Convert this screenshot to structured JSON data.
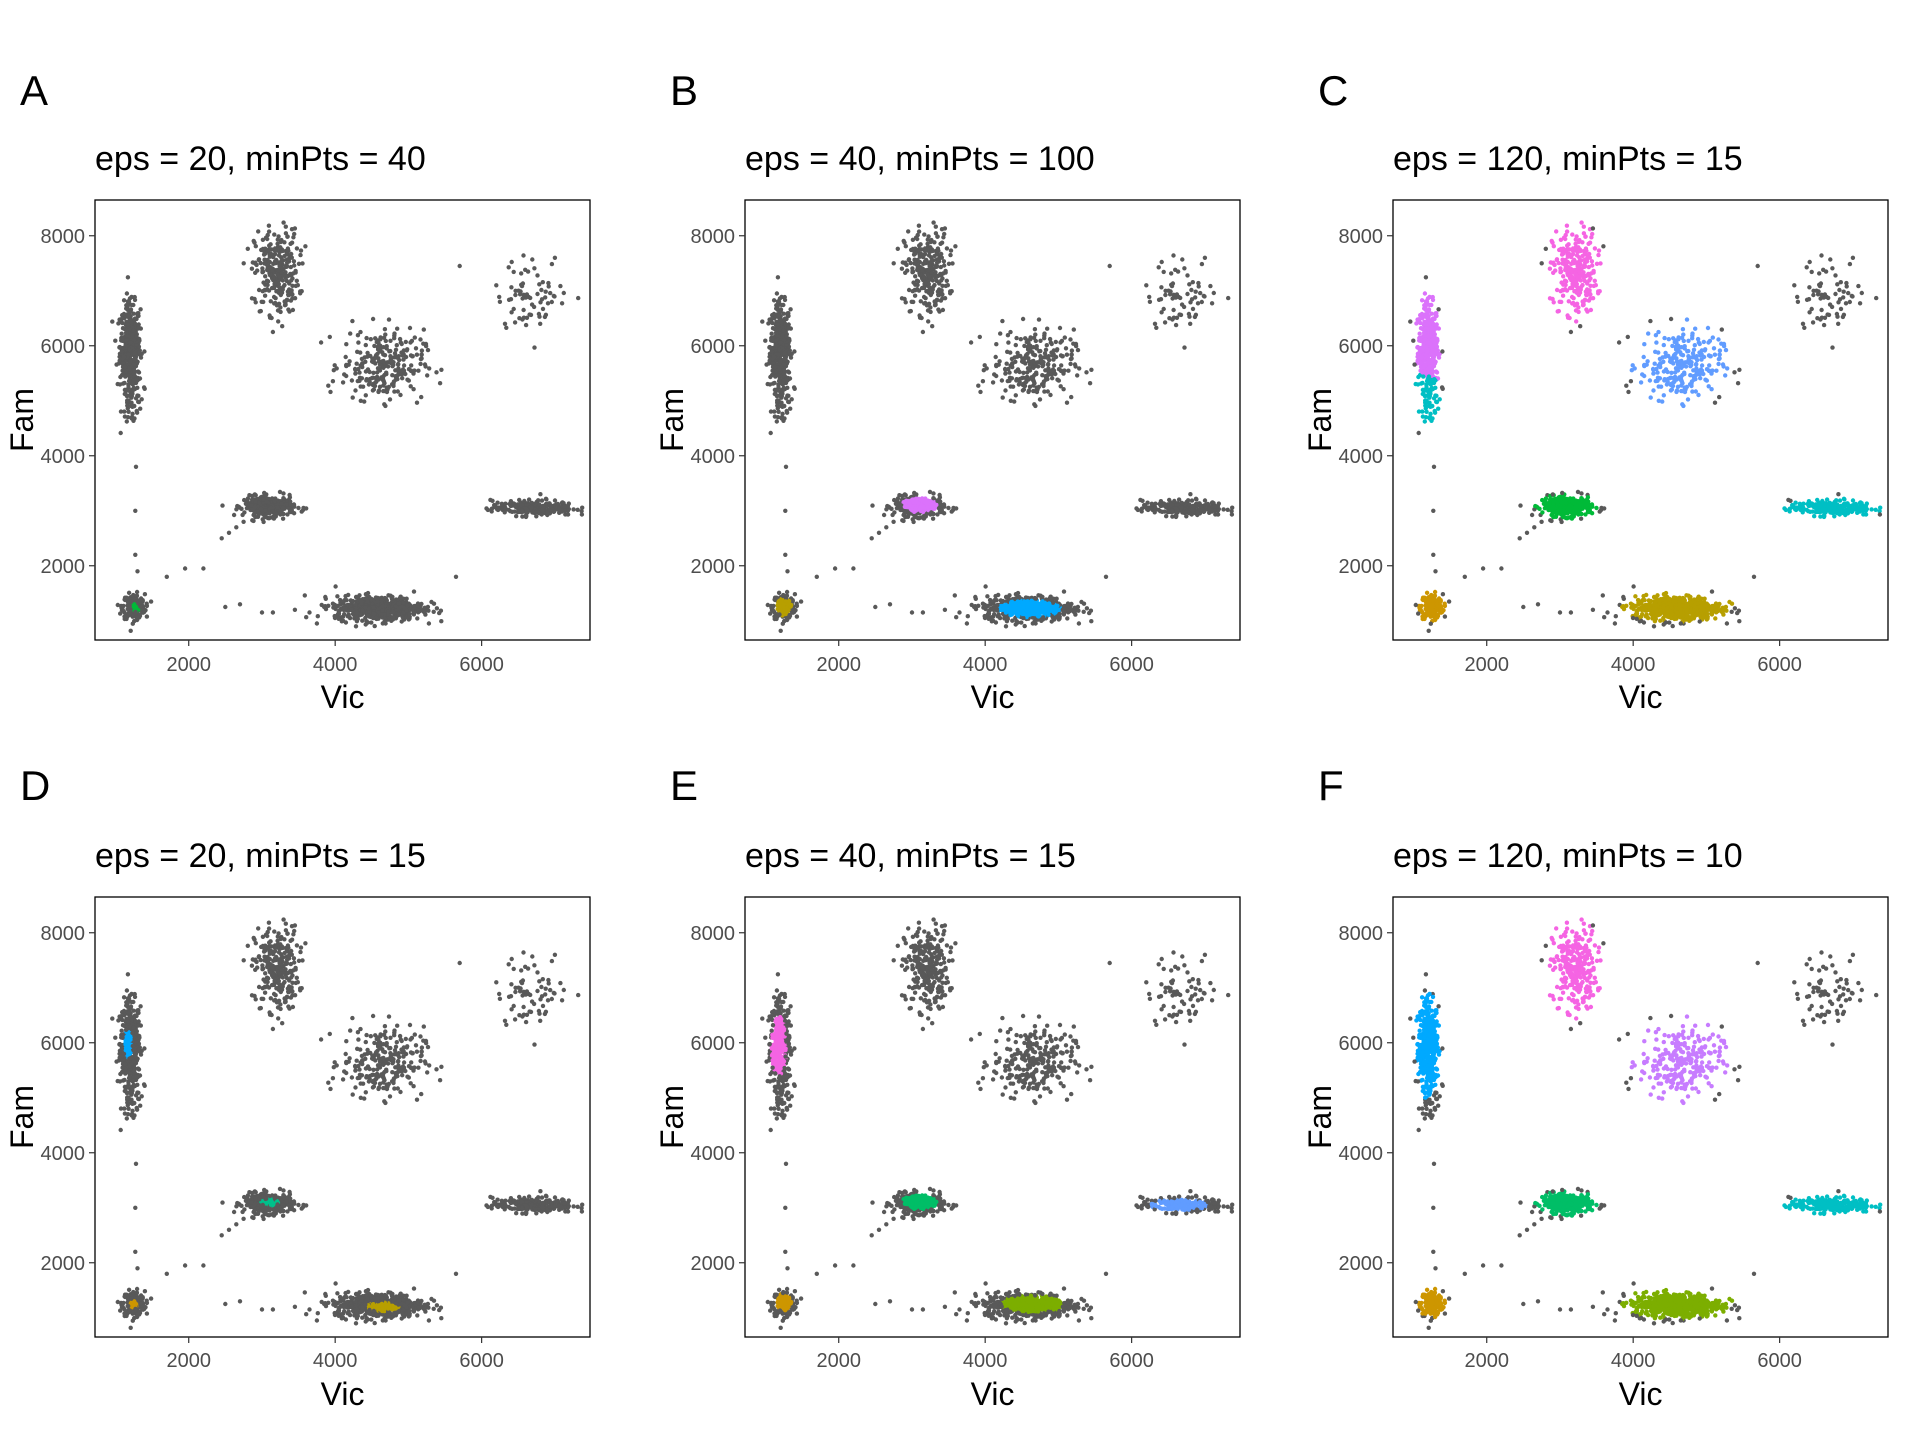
{
  "axis_defaults": {
    "xlabel": "Vic",
    "ylabel": "Fam",
    "xlim": [
      720,
      7480
    ],
    "ylim": [
      650,
      8650
    ],
    "xticks": [
      "2000",
      "4000",
      "6000"
    ],
    "yticks": [
      "2000",
      "4000",
      "6000",
      "8000"
    ]
  },
  "colors": {
    "noise": "#595959",
    "green": "#00ba38",
    "violet": "#db72fb",
    "cyan_blue": "#00a9ff",
    "olive": "#b79f00",
    "magenta": "#f564e3",
    "cornflower": "#619cff",
    "deep_cyan": "#00bfc4",
    "sea_green": "#00c08b",
    "cluster_green": "#00be67",
    "orange": "#cd9600",
    "lime": "#7cae00",
    "sky": "#00b4f0",
    "lavender": "#c77cff"
  },
  "chart_data": [
    {
      "type": "scatter",
      "panel_label": "A",
      "title": "eps = 20, minPts = 40",
      "xlabel": "Vic",
      "ylabel": "Fam",
      "xlim": [
        720,
        7480
      ],
      "ylim": [
        650,
        8650
      ],
      "grid": false,
      "series": [
        {
          "color": "#595959",
          "role": "noise",
          "approx_points": [
            [
              1250,
              6000
            ],
            [
              1200,
              5200
            ],
            [
              1280,
              3800
            ],
            [
              1270,
              3000
            ],
            [
              1270,
              2200
            ],
            [
              1700,
              1800
            ],
            [
              1950,
              1950
            ],
            [
              2200,
              1950
            ],
            [
              2500,
              1250
            ],
            [
              2700,
              1300
            ],
            [
              3000,
              7300
            ],
            [
              3100,
              3100
            ],
            [
              3300,
              1200
            ],
            [
              4500,
              1250
            ],
            [
              4500,
              5700
            ],
            [
              5650,
              1800
            ],
            [
              5700,
              7450
            ],
            [
              6700,
              3050
            ],
            [
              6700,
              7000
            ]
          ]
        },
        {
          "color": "#00ba38",
          "cluster_center": [
            1270,
            1250
          ]
        }
      ]
    },
    {
      "type": "scatter",
      "panel_label": "B",
      "title": "eps = 40, minPts = 100",
      "xlabel": "Vic",
      "ylabel": "Fam",
      "xlim": [
        720,
        7480
      ],
      "ylim": [
        650,
        8650
      ],
      "grid": false,
      "series": [
        {
          "color": "#595959",
          "role": "noise",
          "approx_points": [
            [
              1200,
              6000
            ],
            [
              3200,
              7300
            ],
            [
              4600,
              5700
            ],
            [
              6700,
              7000
            ],
            [
              3100,
              3100
            ],
            [
              6700,
              3050
            ],
            [
              4500,
              1250
            ],
            [
              1250,
              1250
            ]
          ]
        },
        {
          "color": "#db72fb",
          "cluster_center": [
            3100,
            3100
          ]
        },
        {
          "color": "#00a9ff",
          "cluster_center": [
            4600,
            1220
          ]
        },
        {
          "color": "#b79f00",
          "cluster_center": [
            1250,
            1250
          ]
        }
      ]
    },
    {
      "type": "scatter",
      "panel_label": "C",
      "title": "eps = 120, minPts = 15",
      "xlabel": "Vic",
      "ylabel": "Fam",
      "xlim": [
        720,
        7480
      ],
      "ylim": [
        650,
        8650
      ],
      "grid": false,
      "series": [
        {
          "color": "#595959",
          "role": "noise",
          "approx_points": [
            [
              6700,
              7000
            ],
            [
              5700,
              7450
            ],
            [
              1270,
              3800
            ],
            [
              1270,
              3000
            ],
            [
              1950,
              1950
            ],
            [
              2700,
              1300
            ]
          ]
        },
        {
          "color": "#db72fb",
          "cluster_center": [
            1200,
            6050
          ]
        },
        {
          "color": "#00bfc4",
          "cluster_center": [
            1180,
            5050
          ]
        },
        {
          "color": "#f564e3",
          "cluster_center": [
            3200,
            7350
          ]
        },
        {
          "color": "#619cff",
          "cluster_center": [
            4650,
            5650
          ]
        },
        {
          "color": "#00ba38",
          "cluster_center": [
            3100,
            3080
          ]
        },
        {
          "color": "#00bfc4",
          "cluster_center": [
            6700,
            3050
          ]
        },
        {
          "color": "#b79f00",
          "cluster_center": [
            4600,
            1250
          ]
        },
        {
          "color": "#cd9600",
          "cluster_center": [
            1250,
            1250
          ]
        }
      ]
    },
    {
      "type": "scatter",
      "panel_label": "D",
      "title": "eps = 20, minPts = 15",
      "xlabel": "Vic",
      "ylabel": "Fam",
      "xlim": [
        720,
        7480
      ],
      "ylim": [
        650,
        8650
      ],
      "grid": false,
      "series": [
        {
          "color": "#595959",
          "role": "noise",
          "approx_points": [
            [
              1200,
              6000
            ],
            [
              3200,
              7300
            ],
            [
              4600,
              5700
            ],
            [
              6700,
              7000
            ],
            [
              3100,
              3100
            ],
            [
              6700,
              3050
            ],
            [
              4500,
              1250
            ],
            [
              1250,
              1250
            ]
          ]
        },
        {
          "color": "#00a9ff",
          "cluster_center": [
            1170,
            5980
          ]
        },
        {
          "color": "#00c08b",
          "cluster_center": [
            3100,
            3100
          ]
        },
        {
          "color": "#cd9600",
          "cluster_center": [
            1250,
            1250
          ]
        },
        {
          "color": "#b79f00",
          "cluster_center": [
            4650,
            1200
          ]
        }
      ]
    },
    {
      "type": "scatter",
      "panel_label": "E",
      "title": "eps = 40, minPts = 15",
      "xlabel": "Vic",
      "ylabel": "Fam",
      "xlim": [
        720,
        7480
      ],
      "ylim": [
        650,
        8650
      ],
      "grid": false,
      "series": [
        {
          "color": "#595959",
          "role": "noise",
          "approx_points": [
            [
              1200,
              6000
            ],
            [
              3200,
              7300
            ],
            [
              4600,
              5700
            ],
            [
              6700,
              7000
            ],
            [
              6700,
              3050
            ],
            [
              4500,
              1250
            ]
          ]
        },
        {
          "color": "#f564e3",
          "cluster_center": [
            1180,
            5950
          ]
        },
        {
          "color": "#00be67",
          "cluster_center": [
            3100,
            3100
          ]
        },
        {
          "color": "#619cff",
          "cluster_center": [
            6650,
            3050
          ]
        },
        {
          "color": "#7cae00",
          "cluster_center": [
            4650,
            1250
          ]
        },
        {
          "color": "#cd9600",
          "cluster_center": [
            1250,
            1280
          ]
        }
      ]
    },
    {
      "type": "scatter",
      "panel_label": "F",
      "title": "eps = 120, minPts = 10",
      "xlabel": "Vic",
      "ylabel": "Fam",
      "xlim": [
        720,
        7480
      ],
      "ylim": [
        650,
        8650
      ],
      "grid": false,
      "series": [
        {
          "color": "#595959",
          "role": "noise",
          "approx_points": [
            [
              6700,
              7000
            ],
            [
              5700,
              7450
            ],
            [
              1270,
              3800
            ],
            [
              1950,
              1950
            ],
            [
              2700,
              1300
            ]
          ]
        },
        {
          "color": "#00a9ff",
          "cluster_center": [
            1200,
            5950
          ]
        },
        {
          "color": "#f564e3",
          "cluster_center": [
            3200,
            7350
          ]
        },
        {
          "color": "#c77cff",
          "cluster_center": [
            4650,
            5650
          ]
        },
        {
          "color": "#00be67",
          "cluster_center": [
            3100,
            3080
          ]
        },
        {
          "color": "#00bfc4",
          "cluster_center": [
            6700,
            3050
          ]
        },
        {
          "color": "#7cae00",
          "cluster_center": [
            4600,
            1250
          ]
        },
        {
          "color": "#cd9600",
          "cluster_center": [
            1250,
            1280
          ]
        }
      ]
    }
  ]
}
